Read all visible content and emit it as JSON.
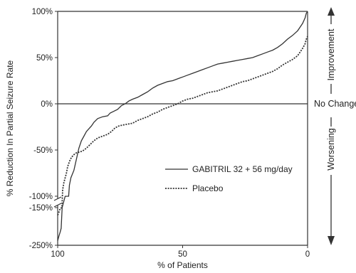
{
  "chart_data": {
    "type": "line",
    "xlabel": "% of Patients",
    "ylabel": "% Reduction In Partial Seizure Rate",
    "x_axis_reversed": true,
    "xlim": [
      100,
      0
    ],
    "x_ticks": [
      {
        "value": 100,
        "label": "100"
      },
      {
        "value": 50,
        "label": "50"
      },
      {
        "value": 0,
        "label": "0"
      }
    ],
    "y_ticks_upper": [
      {
        "value": 100,
        "label": "100%"
      },
      {
        "value": 50,
        "label": "50%"
      },
      {
        "value": 0,
        "label": "0%"
      },
      {
        "value": -50,
        "label": "-50%"
      },
      {
        "value": -100,
        "label": "-100%"
      }
    ],
    "y_ticks_lower": [
      {
        "value": -150,
        "label": "-150%"
      },
      {
        "value": -250,
        "label": "-250%"
      }
    ],
    "axis_break": {
      "upper_min": -100,
      "lower_min": -250,
      "lower_max": -150
    },
    "reference_line": {
      "y": 0,
      "label": "No Change"
    },
    "annotations": {
      "improvement": "Improvement",
      "worsening": "Worsening"
    },
    "legend_position": "center-right",
    "series": [
      {
        "name": "GABITRIL 32 + 56 mg/day",
        "style": "solid",
        "color": "#333333",
        "points": [
          [
            100,
            -238
          ],
          [
            99.5,
            -225
          ],
          [
            99,
            -215
          ],
          [
            98.6,
            -205
          ],
          [
            98.2,
            -150
          ],
          [
            97,
            -120
          ],
          [
            95.6,
            -100
          ],
          [
            95.3,
            -88
          ],
          [
            94.7,
            -80
          ],
          [
            93.5,
            -72
          ],
          [
            92.5,
            -60
          ],
          [
            91.5,
            -48
          ],
          [
            90.5,
            -40
          ],
          [
            89.5,
            -35
          ],
          [
            88.5,
            -30
          ],
          [
            87.5,
            -27
          ],
          [
            86.5,
            -24
          ],
          [
            85.5,
            -20
          ],
          [
            84,
            -16
          ],
          [
            82,
            -14
          ],
          [
            80,
            -13
          ],
          [
            79,
            -10
          ],
          [
            77.5,
            -8
          ],
          [
            76,
            -6
          ],
          [
            74.5,
            -2
          ],
          [
            73,
            0
          ],
          [
            71.5,
            3
          ],
          [
            70,
            5
          ],
          [
            68,
            7
          ],
          [
            66,
            10
          ],
          [
            64,
            13
          ],
          [
            62,
            17
          ],
          [
            60,
            20
          ],
          [
            58,
            22
          ],
          [
            56,
            24
          ],
          [
            54,
            25
          ],
          [
            52,
            27
          ],
          [
            50,
            29
          ],
          [
            48,
            31
          ],
          [
            46,
            33
          ],
          [
            44,
            35
          ],
          [
            42,
            37
          ],
          [
            40,
            39
          ],
          [
            38,
            41
          ],
          [
            36,
            43
          ],
          [
            34,
            44
          ],
          [
            32,
            45
          ],
          [
            30,
            46
          ],
          [
            28,
            47
          ],
          [
            26,
            48
          ],
          [
            24,
            49
          ],
          [
            22,
            50
          ],
          [
            20,
            52
          ],
          [
            18,
            54
          ],
          [
            16,
            56
          ],
          [
            14,
            58
          ],
          [
            12,
            61
          ],
          [
            10,
            65
          ],
          [
            8,
            70
          ],
          [
            6,
            74
          ],
          [
            4,
            79
          ],
          [
            3,
            83
          ],
          [
            2,
            87
          ],
          [
            1,
            93
          ],
          [
            0.5,
            98
          ],
          [
            0,
            100
          ]
        ]
      },
      {
        "name": "Placebo",
        "style": "dotted",
        "color": "#333333",
        "points": [
          [
            100,
            -170
          ],
          [
            99.5,
            -162
          ],
          [
            99,
            -152
          ],
          [
            98.3,
            -150
          ],
          [
            98,
            -93
          ],
          [
            97.5,
            -85
          ],
          [
            96.5,
            -75
          ],
          [
            96,
            -68
          ],
          [
            95.2,
            -62
          ],
          [
            94.5,
            -58
          ],
          [
            93.5,
            -55
          ],
          [
            92.5,
            -53
          ],
          [
            91,
            -52
          ],
          [
            90,
            -51
          ],
          [
            88.5,
            -48
          ],
          [
            87,
            -44
          ],
          [
            85.5,
            -40
          ],
          [
            84,
            -37
          ],
          [
            82,
            -35
          ],
          [
            80,
            -33
          ],
          [
            78.5,
            -30
          ],
          [
            77,
            -26
          ],
          [
            75.5,
            -24
          ],
          [
            74,
            -23
          ],
          [
            72,
            -22
          ],
          [
            70,
            -21
          ],
          [
            68,
            -18
          ],
          [
            66,
            -16
          ],
          [
            64,
            -14
          ],
          [
            62,
            -11
          ],
          [
            60,
            -9
          ],
          [
            58,
            -6
          ],
          [
            56,
            -4
          ],
          [
            54,
            -2
          ],
          [
            52,
            0
          ],
          [
            50,
            3
          ],
          [
            48,
            5
          ],
          [
            46,
            6
          ],
          [
            44,
            8
          ],
          [
            42,
            10
          ],
          [
            40,
            12
          ],
          [
            38,
            13
          ],
          [
            36,
            14
          ],
          [
            34,
            16
          ],
          [
            32,
            18
          ],
          [
            30,
            20
          ],
          [
            28,
            22
          ],
          [
            26,
            24
          ],
          [
            24,
            25
          ],
          [
            22,
            27
          ],
          [
            20,
            29
          ],
          [
            18,
            31
          ],
          [
            16,
            33
          ],
          [
            14,
            35
          ],
          [
            12,
            38
          ],
          [
            10,
            42
          ],
          [
            8,
            45
          ],
          [
            6,
            48
          ],
          [
            4,
            52
          ],
          [
            3,
            56
          ],
          [
            2,
            60
          ],
          [
            1,
            65
          ],
          [
            0.5,
            70
          ],
          [
            0,
            73
          ]
        ]
      }
    ]
  }
}
